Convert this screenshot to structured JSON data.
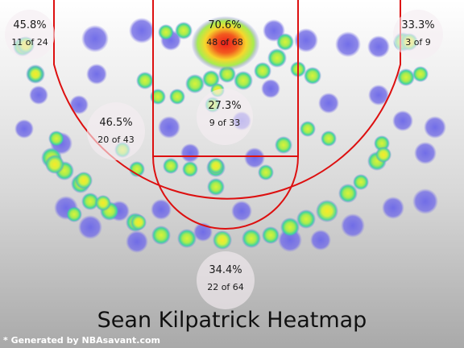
{
  "chart_data": {
    "type": "heatmap",
    "title": "Sean Kilpatrick Heatmap",
    "credit": "* Generated by NBAsavant.com",
    "colors": {
      "cold": "#6f69e6",
      "warm": "#c6f04a",
      "hot": "#f5f032",
      "hottest": "#f02020",
      "court_line": "#dd1111"
    },
    "zones": [
      {
        "pct": "45.8%",
        "made_of": "11 of 24",
        "made": 11,
        "attempts": 24,
        "zone": "left corner three"
      },
      {
        "pct": "70.6%",
        "made_of": "48 of 68",
        "made": 48,
        "attempts": 68,
        "zone": "restricted area"
      },
      {
        "pct": "33.3%",
        "made_of": "3 of 9",
        "made": 3,
        "attempts": 9,
        "zone": "right corner three"
      },
      {
        "pct": "27.3%",
        "made_of": "9 of 33",
        "made": 9,
        "attempts": 33,
        "zone": "paint non-RA"
      },
      {
        "pct": "46.5%",
        "made_of": "20 of 43",
        "made": 20,
        "attempts": 43,
        "zone": "mid-range"
      },
      {
        "pct": "34.4%",
        "made_of": "22 of 64",
        "made": 22,
        "attempts": 64,
        "zone": "above the break three"
      }
    ]
  }
}
